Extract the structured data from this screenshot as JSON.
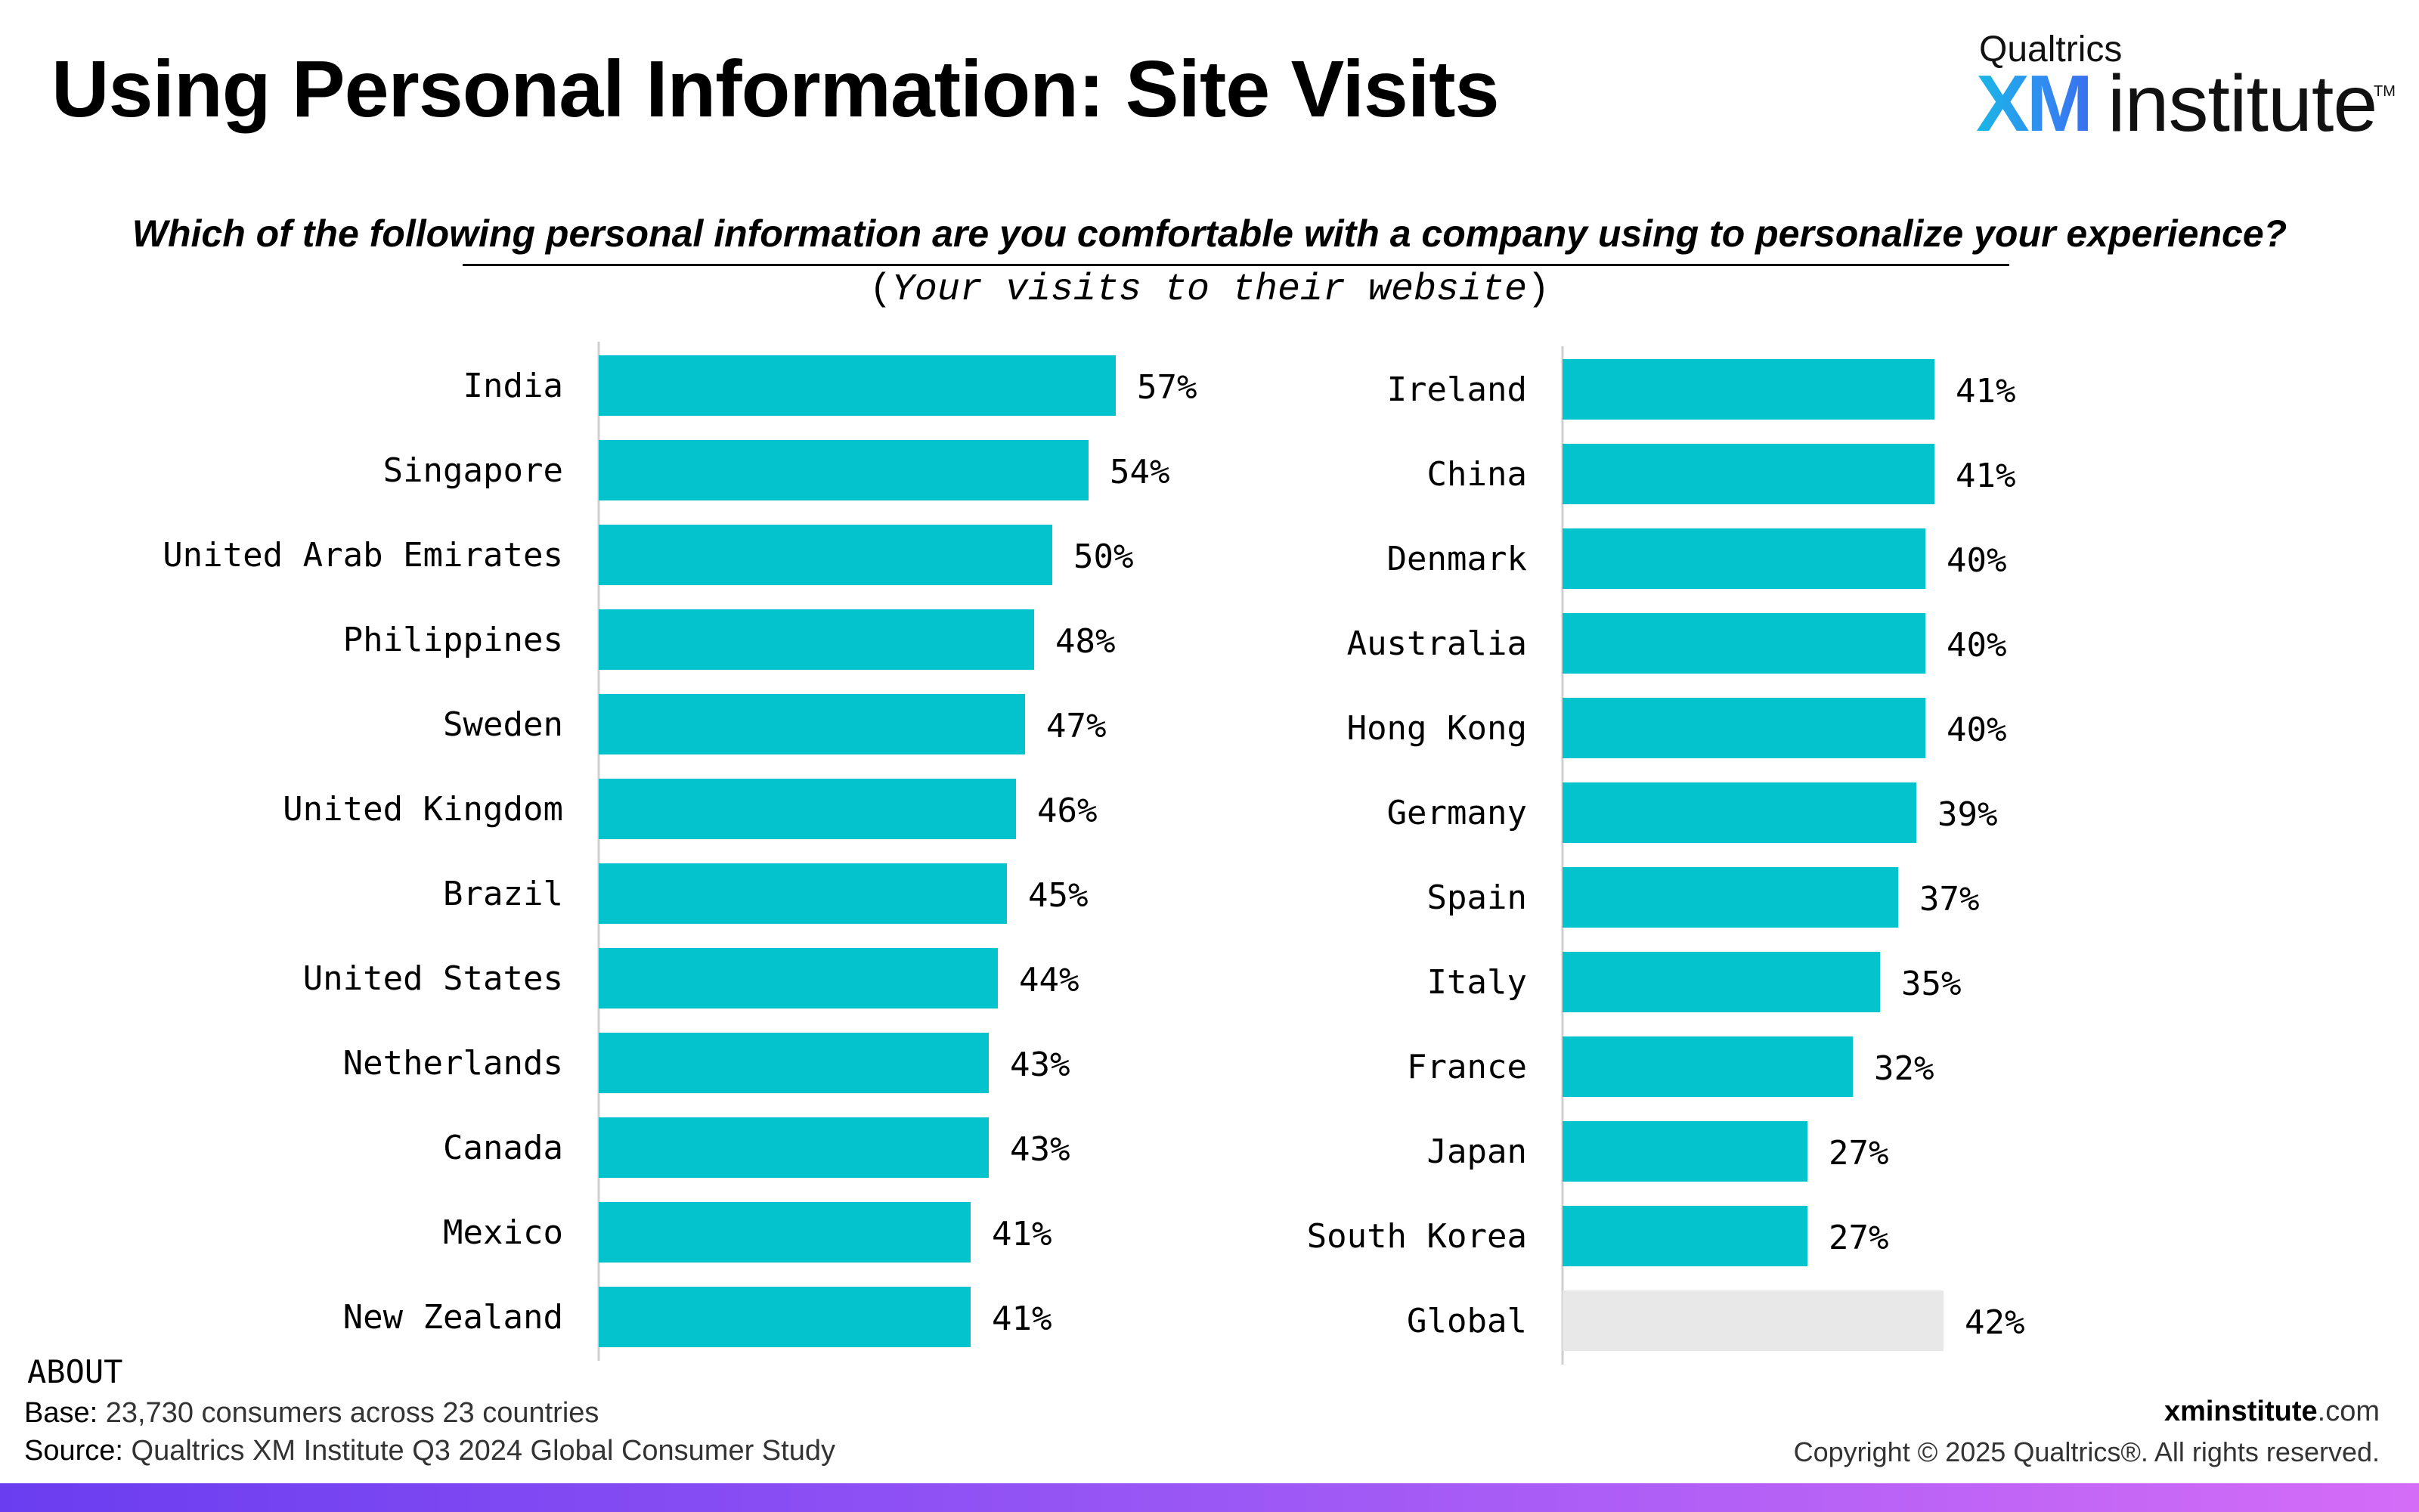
{
  "title": "Using Personal Information: Site Visits",
  "logo": {
    "brand": "Qualtrics",
    "xm": "XM",
    "word": "institute",
    "tm": "TM"
  },
  "question": "Which of the following personal information are you comfortable with a company using to personalize your experience?",
  "subquestion": {
    "open": "(",
    "text": "Your visits to their website",
    "close": ")"
  },
  "colors": {
    "bar": "#05c3cc",
    "global_bar": "#e8e8e8",
    "axis": "#cfcfcf"
  },
  "chart_data": [
    {
      "type": "bar",
      "orientation": "horizontal",
      "categories": [
        "India",
        "Singapore",
        "United Arab Emirates",
        "Philippines",
        "Sweden",
        "United Kingdom",
        "Brazil",
        "United States",
        "Netherlands",
        "Canada",
        "Mexico",
        "New Zealand"
      ],
      "values": [
        57,
        54,
        50,
        48,
        47,
        46,
        45,
        44,
        43,
        43,
        41,
        41
      ],
      "labels": [
        "57%",
        "54%",
        "50%",
        "48%",
        "47%",
        "46%",
        "45%",
        "44%",
        "43%",
        "43%",
        "41%",
        "41%"
      ],
      "unit": "%"
    },
    {
      "type": "bar",
      "orientation": "horizontal",
      "categories": [
        "Ireland",
        "China",
        "Denmark",
        "Australia",
        "Hong Kong",
        "Germany",
        "Spain",
        "Italy",
        "France",
        "Japan",
        "South Korea",
        "Global"
      ],
      "values": [
        41,
        41,
        40,
        40,
        40,
        39,
        37,
        35,
        32,
        27,
        27,
        42
      ],
      "labels": [
        "41%",
        "41%",
        "40%",
        "40%",
        "40%",
        "39%",
        "37%",
        "35%",
        "32%",
        "27%",
        "27%",
        "42%"
      ],
      "highlight": "Global",
      "unit": "%"
    }
  ],
  "footer": {
    "about": "ABOUT",
    "base_label": "Base:",
    "base_text": "23,730 consumers across 23 countries",
    "source_label": "Source:",
    "source_text": "Qualtrics XM Institute Q3 2024 Global Consumer Study",
    "site_bold": "xminstitute",
    "site_tld": ".com",
    "copyright": "Copyright © 2025 Qualtrics®. All rights reserved."
  }
}
